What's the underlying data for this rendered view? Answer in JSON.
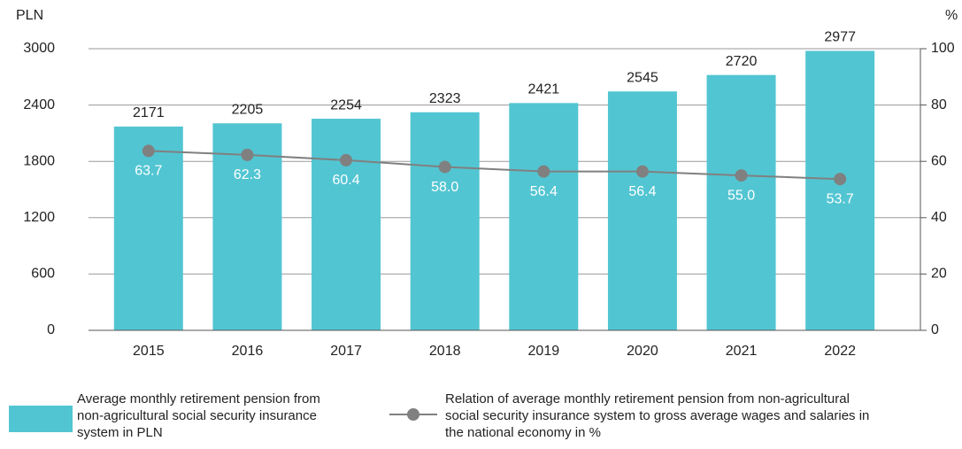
{
  "chart_data": {
    "type": "combo",
    "y_label": "PLN",
    "y2_label": "%",
    "categories": [
      "2015",
      "2016",
      "2017",
      "2018",
      "2019",
      "2020",
      "2021",
      "2022"
    ],
    "series": [
      {
        "name": "Average monthly retirement pension from non-agricultural social security insurance system in PLN",
        "type": "bar",
        "color": "#52c5d2",
        "values": [
          2171,
          2205,
          2254,
          2323,
          2421,
          2545,
          2720,
          2977
        ]
      },
      {
        "name": "Relation of average monthly retirement pension from non-agricultural social security insurance system to gross average wages and salaries in the national economy in %",
        "type": "line",
        "color": "#808080",
        "axis": "y2",
        "values": [
          63.7,
          62.3,
          60.4,
          58,
          56.4,
          56.4,
          55,
          53.7
        ],
        "value_labels": [
          "63.7",
          "62.3",
          "60.4",
          "58.0",
          "56.4",
          "56.4",
          "55.0",
          "53.7"
        ]
      }
    ],
    "ylim": [
      0,
      3000
    ],
    "yticks": [
      0,
      600,
      1200,
      1800,
      2400,
      3000
    ],
    "y2lim": [
      0,
      100
    ],
    "y2ticks": [
      0,
      20,
      40,
      60,
      80,
      100
    ],
    "grid": true
  }
}
